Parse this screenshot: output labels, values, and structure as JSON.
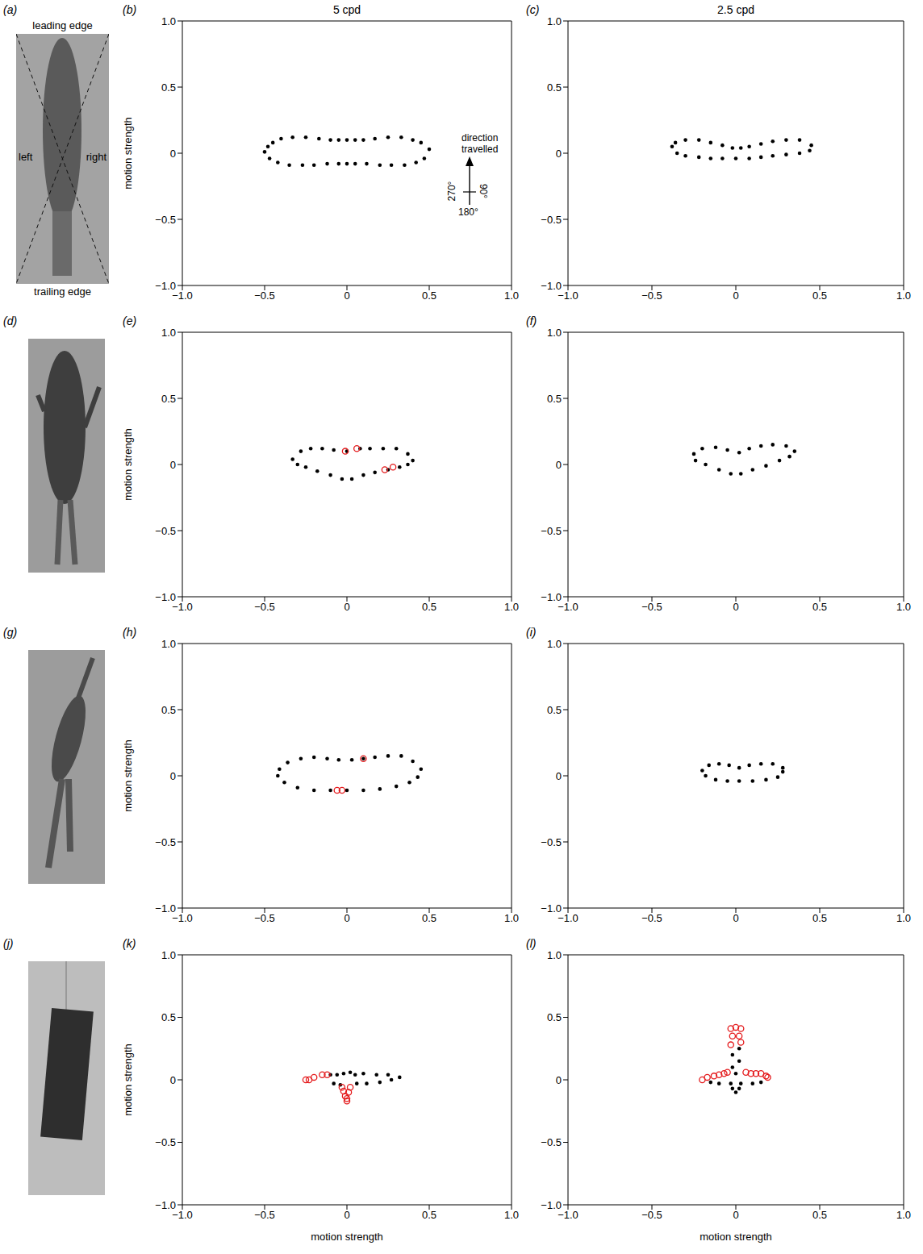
{
  "column_titles": [
    "5 cpd",
    "2.5 cpd"
  ],
  "images": [
    {
      "panel": "(a)",
      "labels": {
        "top": "leading edge",
        "left": "left",
        "right": "right",
        "bottom": "trailing edge"
      }
    },
    {
      "panel": "(d)"
    },
    {
      "panel": "(g)"
    },
    {
      "panel": "(j)"
    }
  ],
  "inset": {
    "arrow_label": "direction travelled",
    "left": "270°",
    "right": "90°",
    "bottom": "180°"
  },
  "chart_data": [
    {
      "type": "scatter",
      "panel": "(b)",
      "ylabel": "motion strength",
      "xlim": [
        -1,
        1
      ],
      "ylim": [
        -1,
        1
      ],
      "xticks": [
        {
          "value": -1,
          "label": "−1.0"
        },
        {
          "value": -0.5,
          "label": "−0.5"
        },
        0,
        0.5,
        {
          "value": 1,
          "label": "1.0"
        }
      ],
      "yticks": [
        {
          "value": -1,
          "label": "−1.0"
        },
        {
          "value": -0.5,
          "label": "−0.5"
        },
        0,
        0.5,
        {
          "value": 1,
          "label": "1.0"
        }
      ],
      "series": [
        {
          "color": "#000000",
          "marker": "dot",
          "x": [
            0.5,
            0.45,
            0.4,
            0.33,
            0.25,
            0.17,
            0.1,
            0.05,
            0,
            -0.05,
            -0.1,
            -0.17,
            -0.25,
            -0.33,
            -0.4,
            -0.45,
            -0.48,
            -0.5,
            -0.47,
            -0.42,
            -0.35,
            -0.27,
            -0.2,
            -0.12,
            -0.05,
            0,
            0.05,
            0.12,
            0.2,
            0.27,
            0.35,
            0.42,
            0.47
          ],
          "values": [
            0.03,
            0.08,
            0.1,
            0.12,
            0.12,
            0.11,
            0.1,
            0.1,
            0.1,
            0.1,
            0.1,
            0.11,
            0.12,
            0.12,
            0.11,
            0.08,
            0.05,
            0.01,
            -0.04,
            -0.07,
            -0.09,
            -0.09,
            -0.09,
            -0.08,
            -0.08,
            -0.08,
            -0.08,
            -0.08,
            -0.09,
            -0.09,
            -0.09,
            -0.07,
            -0.04
          ]
        }
      ]
    },
    {
      "type": "scatter",
      "panel": "(c)",
      "xlim": [
        -1,
        1
      ],
      "ylim": [
        -1,
        1
      ],
      "xticks": [
        {
          "value": -1,
          "label": "−1.0"
        },
        {
          "value": -0.5,
          "label": "−0.5"
        },
        0,
        0.5,
        {
          "value": 1,
          "label": "1.0"
        }
      ],
      "yticks": [
        {
          "value": -1,
          "label": "−1.0"
        },
        {
          "value": -0.5,
          "label": "−0.5"
        },
        0,
        0.5,
        {
          "value": 1,
          "label": "1.0"
        }
      ],
      "series": [
        {
          "color": "#000000",
          "marker": "dot",
          "x": [
            0.45,
            0.38,
            0.3,
            0.22,
            0.15,
            0.08,
            0.03,
            -0.02,
            -0.08,
            -0.15,
            -0.22,
            -0.3,
            -0.36,
            -0.38,
            -0.35,
            -0.3,
            -0.22,
            -0.15,
            -0.08,
            0,
            0.08,
            0.15,
            0.22,
            0.3,
            0.38,
            0.44
          ],
          "values": [
            0.06,
            0.1,
            0.1,
            0.09,
            0.07,
            0.05,
            0.04,
            0.04,
            0.06,
            0.08,
            0.1,
            0.1,
            0.08,
            0.05,
            0,
            -0.02,
            -0.03,
            -0.04,
            -0.04,
            -0.04,
            -0.04,
            -0.03,
            -0.02,
            -0.01,
            0,
            0.02
          ]
        }
      ]
    },
    {
      "type": "scatter",
      "panel": "(e)",
      "ylabel": "motion strength",
      "xlim": [
        -1,
        1
      ],
      "ylim": [
        -1,
        1
      ],
      "xticks": [
        {
          "value": -1,
          "label": "−1.0"
        },
        {
          "value": -0.5,
          "label": "−0.5"
        },
        0,
        0.5,
        {
          "value": 1,
          "label": "1.0"
        }
      ],
      "yticks": [
        {
          "value": -1,
          "label": "−1.0"
        },
        {
          "value": -0.5,
          "label": "−0.5"
        },
        0,
        0.5,
        {
          "value": 1,
          "label": "1.0"
        }
      ],
      "series": [
        {
          "color": "#000000",
          "marker": "dot",
          "x": [
            0.4,
            0.37,
            0.3,
            0.22,
            0.14,
            0.08,
            0,
            -0.08,
            -0.15,
            -0.22,
            -0.28,
            -0.33,
            -0.3,
            -0.25,
            -0.18,
            -0.1,
            -0.03,
            0.03,
            0.1,
            0.17,
            0.25,
            0.32,
            0.37
          ],
          "values": [
            0.03,
            0.08,
            0.12,
            0.12,
            0.12,
            0.12,
            0.1,
            0.11,
            0.12,
            0.12,
            0.1,
            0.04,
            0,
            -0.02,
            -0.05,
            -0.08,
            -0.11,
            -0.11,
            -0.08,
            -0.06,
            -0.04,
            -0.02,
            0
          ]
        },
        {
          "color": "#e41a1c",
          "marker": "open circle",
          "x": [
            0.06,
            -0.01,
            0.23,
            0.28
          ],
          "values": [
            0.12,
            0.1,
            -0.04,
            -0.02
          ]
        }
      ]
    },
    {
      "type": "scatter",
      "panel": "(f)",
      "xlim": [
        -1,
        1
      ],
      "ylim": [
        -1,
        1
      ],
      "xticks": [
        {
          "value": -1,
          "label": "−1.0"
        },
        {
          "value": -0.5,
          "label": "−0.5"
        },
        0,
        0.5,
        {
          "value": 1,
          "label": "1.0"
        }
      ],
      "yticks": [
        {
          "value": -1,
          "label": "−1.0"
        },
        {
          "value": -0.5,
          "label": "−0.5"
        },
        0,
        0.5,
        {
          "value": 1,
          "label": "1.0"
        }
      ],
      "series": [
        {
          "color": "#000000",
          "marker": "dot",
          "x": [
            0.35,
            0.3,
            0.22,
            0.15,
            0.08,
            0.02,
            -0.05,
            -0.12,
            -0.2,
            -0.25,
            -0.24,
            -0.18,
            -0.1,
            -0.03,
            0.03,
            0.1,
            0.18,
            0.26,
            0.32
          ],
          "values": [
            0.1,
            0.14,
            0.15,
            0.14,
            0.12,
            0.09,
            0.11,
            0.13,
            0.12,
            0.08,
            0.03,
            0,
            -0.04,
            -0.07,
            -0.07,
            -0.04,
            -0.01,
            0.03,
            0.06
          ]
        }
      ]
    },
    {
      "type": "scatter",
      "panel": "(h)",
      "ylabel": "motion strength",
      "xlim": [
        -1,
        1
      ],
      "ylim": [
        -1,
        1
      ],
      "xticks": [
        {
          "value": -1,
          "label": "−1.0"
        },
        {
          "value": -0.5,
          "label": "−0.5"
        },
        0,
        0.5,
        {
          "value": 1,
          "label": "1.0"
        }
      ],
      "yticks": [
        {
          "value": -1,
          "label": "−1.0"
        },
        {
          "value": -0.5,
          "label": "−0.5"
        },
        0,
        0.5,
        {
          "value": 1,
          "label": "1.0"
        }
      ],
      "series": [
        {
          "color": "#000000",
          "marker": "dot",
          "x": [
            0.45,
            0.4,
            0.33,
            0.25,
            0.17,
            0.1,
            0.03,
            -0.05,
            -0.12,
            -0.2,
            -0.28,
            -0.36,
            -0.41,
            -0.42,
            -0.38,
            -0.3,
            -0.2,
            -0.1,
            0,
            0.1,
            0.2,
            0.3,
            0.38,
            0.43
          ],
          "values": [
            0.05,
            0.11,
            0.15,
            0.15,
            0.14,
            0.13,
            0.12,
            0.12,
            0.13,
            0.14,
            0.13,
            0.1,
            0.05,
            0,
            -0.05,
            -0.09,
            -0.11,
            -0.11,
            -0.11,
            -0.11,
            -0.1,
            -0.08,
            -0.05,
            -0.01
          ]
        },
        {
          "color": "#e41a1c",
          "marker": "open circle",
          "x": [
            0.1,
            -0.06,
            -0.03
          ],
          "values": [
            0.13,
            -0.11,
            -0.11
          ]
        }
      ]
    },
    {
      "type": "scatter",
      "panel": "(i)",
      "xlim": [
        -1,
        1
      ],
      "ylim": [
        -1,
        1
      ],
      "xticks": [
        {
          "value": -1,
          "label": "−1.0"
        },
        {
          "value": -0.5,
          "label": "−0.5"
        },
        0,
        0.5,
        {
          "value": 1,
          "label": "1.0"
        }
      ],
      "yticks": [
        {
          "value": -1,
          "label": "−1.0"
        },
        {
          "value": -0.5,
          "label": "−0.5"
        },
        0,
        0.5,
        {
          "value": 1,
          "label": "1.0"
        }
      ],
      "series": [
        {
          "color": "#000000",
          "marker": "dot",
          "x": [
            0.28,
            0.22,
            0.15,
            0.08,
            0.02,
            -0.04,
            -0.1,
            -0.16,
            -0.2,
            -0.18,
            -0.12,
            -0.05,
            0.02,
            0.1,
            0.18,
            0.25,
            0.28
          ],
          "values": [
            0.06,
            0.09,
            0.09,
            0.08,
            0.06,
            0.08,
            0.09,
            0.08,
            0.04,
            0,
            -0.03,
            -0.04,
            -0.04,
            -0.04,
            -0.03,
            -0.01,
            0.03
          ]
        }
      ]
    },
    {
      "type": "scatter",
      "panel": "(k)",
      "ylabel": "motion strength",
      "xlabel": "motion strength",
      "xlim": [
        -1,
        1
      ],
      "ylim": [
        -1,
        1
      ],
      "xticks": [
        {
          "value": -1,
          "label": "−1.0"
        },
        {
          "value": -0.5,
          "label": "−0.5"
        },
        0,
        0.5,
        {
          "value": 1,
          "label": "1.0"
        }
      ],
      "yticks": [
        {
          "value": -1,
          "label": "−1.0"
        },
        {
          "value": -0.5,
          "label": "−0.5"
        },
        0,
        0.5,
        {
          "value": 1,
          "label": "1.0"
        }
      ],
      "series": [
        {
          "color": "#000000",
          "marker": "dot",
          "x": [
            0.32,
            0.25,
            0.18,
            0.1,
            0.05,
            0.02,
            -0.02,
            -0.06,
            -0.1,
            0.06,
            0.12,
            0.2,
            0.27,
            -0.08,
            -0.04
          ],
          "values": [
            0.02,
            0.04,
            0.04,
            0.05,
            0.04,
            0.06,
            0.05,
            0.04,
            0.04,
            -0.03,
            -0.03,
            -0.02,
            0,
            -0.03,
            -0.04
          ]
        },
        {
          "color": "#e41a1c",
          "marker": "open circle",
          "x": [
            -0.25,
            -0.23,
            -0.2,
            -0.15,
            -0.12,
            -0.03,
            0.02,
            -0.02,
            0.01,
            -0.01,
            0,
            0
          ],
          "values": [
            0,
            0,
            0.02,
            0.04,
            0.04,
            -0.06,
            -0.06,
            -0.09,
            -0.1,
            -0.13,
            -0.15,
            -0.17
          ]
        }
      ]
    },
    {
      "type": "scatter",
      "panel": "(l)",
      "xlabel": "motion strength",
      "xlim": [
        -1,
        1
      ],
      "ylim": [
        -1,
        1
      ],
      "xticks": [
        {
          "value": -1,
          "label": "−1.0"
        },
        {
          "value": -0.5,
          "label": "−0.5"
        },
        0,
        0.5,
        {
          "value": 1,
          "label": "1.0"
        }
      ],
      "yticks": [
        {
          "value": -1,
          "label": "−1.0"
        },
        {
          "value": -0.5,
          "label": "−0.5"
        },
        0,
        0.5,
        {
          "value": 1,
          "label": "1.0"
        }
      ],
      "series": [
        {
          "color": "#000000",
          "marker": "dot",
          "x": [
            0,
            -0.02,
            0.02,
            -0.02,
            0.02,
            -0.03,
            0.03,
            -0.1,
            -0.15,
            0.1,
            0.15,
            0,
            -0.02,
            0.02
          ],
          "values": [
            0.05,
            0.1,
            0.15,
            0.2,
            0.25,
            -0.03,
            -0.03,
            -0.03,
            -0.02,
            -0.03,
            -0.02,
            -0.1,
            -0.07,
            -0.07
          ]
        },
        {
          "color": "#e41a1c",
          "marker": "open circle",
          "x": [
            0,
            0.03,
            -0.03,
            -0.02,
            0.02,
            -0.03,
            0.03,
            -0.2,
            -0.17,
            -0.13,
            -0.1,
            -0.07,
            -0.05,
            0.06,
            0.09,
            0.12,
            0.15,
            0.18,
            0.19
          ],
          "values": [
            0.42,
            0.41,
            0.41,
            0.35,
            0.35,
            0.28,
            0.3,
            0,
            0.02,
            0.03,
            0.04,
            0.05,
            0.06,
            0.06,
            0.05,
            0.05,
            0.05,
            0.03,
            0.02
          ]
        }
      ]
    }
  ]
}
